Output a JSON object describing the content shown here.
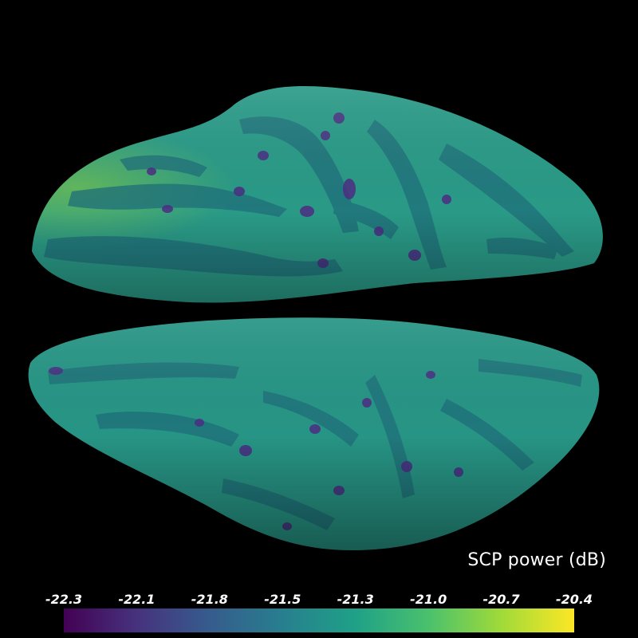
{
  "scene": {
    "background": "#000000",
    "surfaces": [
      {
        "name": "upper-hemisphere-surface"
      },
      {
        "name": "lower-hemisphere-surface"
      }
    ]
  },
  "colorbar": {
    "title": "SCP power (dB)",
    "colormap": "viridis",
    "range": [
      -22.3,
      -20.4
    ],
    "ticks": [
      "-22.3",
      "-22.1",
      "-21.8",
      "-21.5",
      "-21.3",
      "-21.0",
      "-20.7",
      "-20.4"
    ],
    "stops": [
      "#440154",
      "#46327e",
      "#365c8d",
      "#277f8e",
      "#1fa187",
      "#4ac16d",
      "#a0da39",
      "#fde725"
    ]
  }
}
